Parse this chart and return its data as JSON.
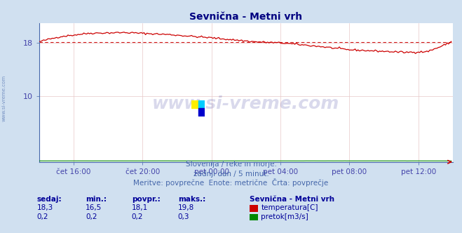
{
  "title": "Sevnična - Metni vrh",
  "title_color": "#000080",
  "bg_color": "#d0e0f0",
  "plot_bg_color": "#ffffff",
  "grid_color": "#e8c8c8",
  "tick_color": "#4444aa",
  "watermark_text": "www.si-vreme.com",
  "watermark_color": "#000080",
  "watermark_alpha": 0.15,
  "subtitle_lines": [
    "Slovenija / reke in morje.",
    "zadnji dan / 5 minut.",
    "Meritve: povprečne  Enote: metrične  Črta: povprečje"
  ],
  "subtitle_color": "#4466aa",
  "xtick_labels": [
    "čet 16:00",
    "čet 20:00",
    "pet 00:00",
    "pet 04:00",
    "pet 08:00",
    "pet 12:00"
  ],
  "ytick_positions": [
    10,
    18
  ],
  "ytick_labels": [
    "10",
    "18"
  ],
  "ylim": [
    0,
    21
  ],
  "xlim": [
    0,
    288
  ],
  "n_points": 288,
  "temp_color": "#cc0000",
  "flow_color": "#008800",
  "avg_line_color": "#cc0000",
  "avg_value": 18.1,
  "temp_min": 16.5,
  "temp_max": 19.8,
  "temp_current": 18.3,
  "temp_avg": 18.1,
  "flow_current": 0.2,
  "flow_min": 0.2,
  "flow_avg": 0.2,
  "flow_max": 0.3,
  "table_headers": [
    "sedaj:",
    "min.:",
    "povpr.:",
    "maks.:"
  ],
  "table_header_color": "#000099",
  "legend_title": "Sevnična - Metni vrh",
  "legend_items": [
    "temperatura[C]",
    "pretok[m3/s]"
  ],
  "legend_colors": [
    "#cc0000",
    "#008800"
  ],
  "xtick_positions": [
    24,
    72,
    120,
    168,
    216,
    264
  ],
  "sidebar_text": "www.si-vreme.com",
  "sidebar_color": "#4466aa",
  "keypoints_x": [
    0,
    5,
    15,
    35,
    60,
    90,
    120,
    150,
    170,
    195,
    215,
    235,
    255,
    270,
    280,
    287
  ],
  "keypoints_y": [
    18.2,
    18.5,
    19.0,
    19.5,
    19.6,
    19.3,
    18.8,
    18.2,
    18.0,
    17.5,
    17.0,
    16.8,
    16.6,
    16.7,
    17.5,
    18.2
  ],
  "logo_colors": [
    "#ffee00",
    "#00ccff",
    "#0000cc"
  ],
  "spine_color": "#4466aa",
  "arrow_color": "#cc0000"
}
